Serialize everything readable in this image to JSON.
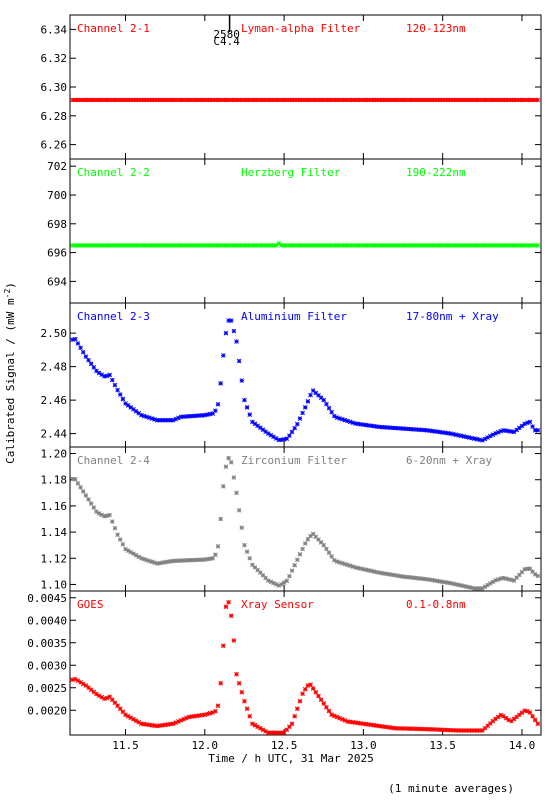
{
  "ylabel": "Calibrated Signal / (mW m",
  "ylabel_sup": "-2",
  "ylabel_close": ")",
  "xlabel": "Time / h UTC, 31 Mar 2025",
  "footnote": "(1 minute averages)",
  "x_range": [
    11.15,
    14.12
  ],
  "x_ticks": [
    11.5,
    12.0,
    12.5,
    13.0,
    13.5,
    14.0
  ],
  "x_tick_labels": [
    "11.5",
    "12.0",
    "12.5",
    "13.0",
    "13.5",
    "14.0"
  ],
  "annotation": {
    "x": 12.15,
    "line1": "2580",
    "line2": "C4.4"
  },
  "chart_data": [
    {
      "type": "scatter",
      "channel": "Channel 2-1",
      "filter": "Lyman-alpha Filter",
      "band": "120-123nm",
      "color": "#ff0000",
      "ylim": [
        6.25,
        6.35
      ],
      "y_ticks": [
        6.26,
        6.28,
        6.3,
        6.32,
        6.34
      ],
      "y_tick_labels": [
        "6.26",
        "6.28",
        "6.30",
        "6.32",
        "6.34"
      ],
      "points": [
        [
          11.15,
          6.291
        ],
        [
          14.12,
          6.291
        ]
      ]
    },
    {
      "type": "scatter",
      "channel": "Channel 2-2",
      "filter": "Herzberg Filter",
      "band": "190-222nm",
      "color": "#00ff00",
      "ylim": [
        692.5,
        702.5
      ],
      "y_ticks": [
        694,
        696,
        698,
        700,
        702
      ],
      "y_tick_labels": [
        "694",
        "696",
        "698",
        "700",
        "702"
      ],
      "points": [
        [
          11.15,
          696.5
        ],
        [
          12.45,
          696.5
        ],
        [
          12.46,
          696.7
        ],
        [
          12.48,
          696.5
        ],
        [
          14.1,
          696.5
        ],
        [
          14.12,
          696.7
        ]
      ]
    },
    {
      "type": "scatter",
      "channel": "Channel 2-3",
      "filter": "Aluminium Filter",
      "band": "17-80nm + Xray",
      "color": "#0000ff",
      "ylim": [
        2.432,
        2.518
      ],
      "y_ticks": [
        2.44,
        2.46,
        2.48,
        2.5
      ],
      "y_tick_labels": [
        "2.44",
        "2.46",
        "2.48",
        "2.50"
      ],
      "points": [
        [
          11.15,
          2.495
        ],
        [
          11.18,
          2.497
        ],
        [
          11.25,
          2.486
        ],
        [
          11.32,
          2.477
        ],
        [
          11.37,
          2.474
        ],
        [
          11.4,
          2.475
        ],
        [
          11.45,
          2.466
        ],
        [
          11.5,
          2.458
        ],
        [
          11.6,
          2.451
        ],
        [
          11.7,
          2.448
        ],
        [
          11.8,
          2.448
        ],
        [
          11.85,
          2.45
        ],
        [
          12.0,
          2.451
        ],
        [
          12.05,
          2.452
        ],
        [
          12.08,
          2.455
        ],
        [
          12.1,
          2.47
        ],
        [
          12.12,
          2.49
        ],
        [
          12.14,
          2.505
        ],
        [
          12.16,
          2.51
        ],
        [
          12.2,
          2.495
        ],
        [
          12.25,
          2.46
        ],
        [
          12.3,
          2.447
        ],
        [
          12.4,
          2.44
        ],
        [
          12.47,
          2.436
        ],
        [
          12.52,
          2.437
        ],
        [
          12.58,
          2.445
        ],
        [
          12.64,
          2.457
        ],
        [
          12.68,
          2.466
        ],
        [
          12.75,
          2.46
        ],
        [
          12.82,
          2.45
        ],
        [
          12.95,
          2.446
        ],
        [
          13.1,
          2.444
        ],
        [
          13.25,
          2.443
        ],
        [
          13.4,
          2.442
        ],
        [
          13.55,
          2.44
        ],
        [
          13.7,
          2.437
        ],
        [
          13.75,
          2.436
        ],
        [
          13.83,
          2.44
        ],
        [
          13.88,
          2.442
        ],
        [
          13.95,
          2.441
        ],
        [
          14.02,
          2.446
        ],
        [
          14.05,
          2.447
        ],
        [
          14.08,
          2.442
        ],
        [
          14.12,
          2.442
        ]
      ]
    },
    {
      "type": "scatter",
      "channel": "Channel 2-4",
      "filter": "Zirconium Filter",
      "band": "6-20nm + Xray",
      "color": "#808080",
      "ylim": [
        1.095,
        1.205
      ],
      "y_ticks": [
        1.1,
        1.12,
        1.14,
        1.16,
        1.18,
        1.2
      ],
      "y_tick_labels": [
        "1.10",
        "1.12",
        "1.14",
        "1.16",
        "1.18",
        "1.20"
      ],
      "points": [
        [
          11.15,
          1.18
        ],
        [
          11.18,
          1.181
        ],
        [
          11.25,
          1.168
        ],
        [
          11.32,
          1.155
        ],
        [
          11.37,
          1.152
        ],
        [
          11.4,
          1.153
        ],
        [
          11.45,
          1.138
        ],
        [
          11.5,
          1.127
        ],
        [
          11.6,
          1.12
        ],
        [
          11.7,
          1.116
        ],
        [
          11.8,
          1.118
        ],
        [
          12.0,
          1.119
        ],
        [
          12.05,
          1.12
        ],
        [
          12.08,
          1.125
        ],
        [
          12.1,
          1.15
        ],
        [
          12.12,
          1.18
        ],
        [
          12.14,
          1.195
        ],
        [
          12.16,
          1.198
        ],
        [
          12.2,
          1.17
        ],
        [
          12.25,
          1.13
        ],
        [
          12.3,
          1.115
        ],
        [
          12.4,
          1.103
        ],
        [
          12.47,
          1.099
        ],
        [
          12.52,
          1.103
        ],
        [
          12.58,
          1.118
        ],
        [
          12.64,
          1.133
        ],
        [
          12.68,
          1.139
        ],
        [
          12.75,
          1.13
        ],
        [
          12.82,
          1.118
        ],
        [
          12.95,
          1.113
        ],
        [
          13.1,
          1.109
        ],
        [
          13.25,
          1.106
        ],
        [
          13.4,
          1.104
        ],
        [
          13.55,
          1.101
        ],
        [
          13.7,
          1.097
        ],
        [
          13.75,
          1.097
        ],
        [
          13.83,
          1.103
        ],
        [
          13.88,
          1.105
        ],
        [
          13.95,
          1.103
        ],
        [
          14.02,
          1.112
        ],
        [
          14.05,
          1.112
        ],
        [
          14.08,
          1.108
        ],
        [
          14.12,
          1.105
        ]
      ]
    },
    {
      "type": "scatter",
      "channel": "GOES",
      "filter": "Xray Sensor",
      "band": "0.1-0.8nm",
      "color": "#ff0000",
      "ylim": [
        0.00145,
        0.00465
      ],
      "y_ticks": [
        0.002,
        0.0025,
        0.003,
        0.0035,
        0.004,
        0.0045
      ],
      "y_tick_labels": [
        "0.0020",
        "0.0025",
        "0.0030",
        "0.0035",
        "0.0040",
        "0.0045"
      ],
      "points": [
        [
          11.15,
          0.00265
        ],
        [
          11.18,
          0.0027
        ],
        [
          11.25,
          0.00255
        ],
        [
          11.32,
          0.00235
        ],
        [
          11.37,
          0.00225
        ],
        [
          11.4,
          0.0023
        ],
        [
          11.45,
          0.0021
        ],
        [
          11.5,
          0.0019
        ],
        [
          11.6,
          0.0017
        ],
        [
          11.7,
          0.00165
        ],
        [
          11.8,
          0.0017
        ],
        [
          11.9,
          0.00185
        ],
        [
          12.0,
          0.0019
        ],
        [
          12.05,
          0.00195
        ],
        [
          12.08,
          0.002
        ],
        [
          12.1,
          0.0026
        ],
        [
          12.12,
          0.0036
        ],
        [
          12.13,
          0.0042
        ],
        [
          12.14,
          0.0045
        ],
        [
          12.16,
          0.0043
        ],
        [
          12.18,
          0.0037
        ],
        [
          12.2,
          0.0028
        ],
        [
          12.25,
          0.0022
        ],
        [
          12.3,
          0.0017
        ],
        [
          12.4,
          0.0015
        ],
        [
          12.5,
          0.0015
        ],
        [
          12.55,
          0.0017
        ],
        [
          12.62,
          0.0024
        ],
        [
          12.66,
          0.0026
        ],
        [
          12.72,
          0.0023
        ],
        [
          12.8,
          0.0019
        ],
        [
          12.9,
          0.00175
        ],
        [
          13.0,
          0.0017
        ],
        [
          13.2,
          0.0016
        ],
        [
          13.4,
          0.00158
        ],
        [
          13.6,
          0.00155
        ],
        [
          13.75,
          0.00155
        ],
        [
          13.83,
          0.0018
        ],
        [
          13.87,
          0.0019
        ],
        [
          13.93,
          0.00175
        ],
        [
          14.02,
          0.002
        ],
        [
          14.05,
          0.00195
        ],
        [
          14.1,
          0.0017
        ],
        [
          14.12,
          0.0018
        ]
      ]
    }
  ]
}
